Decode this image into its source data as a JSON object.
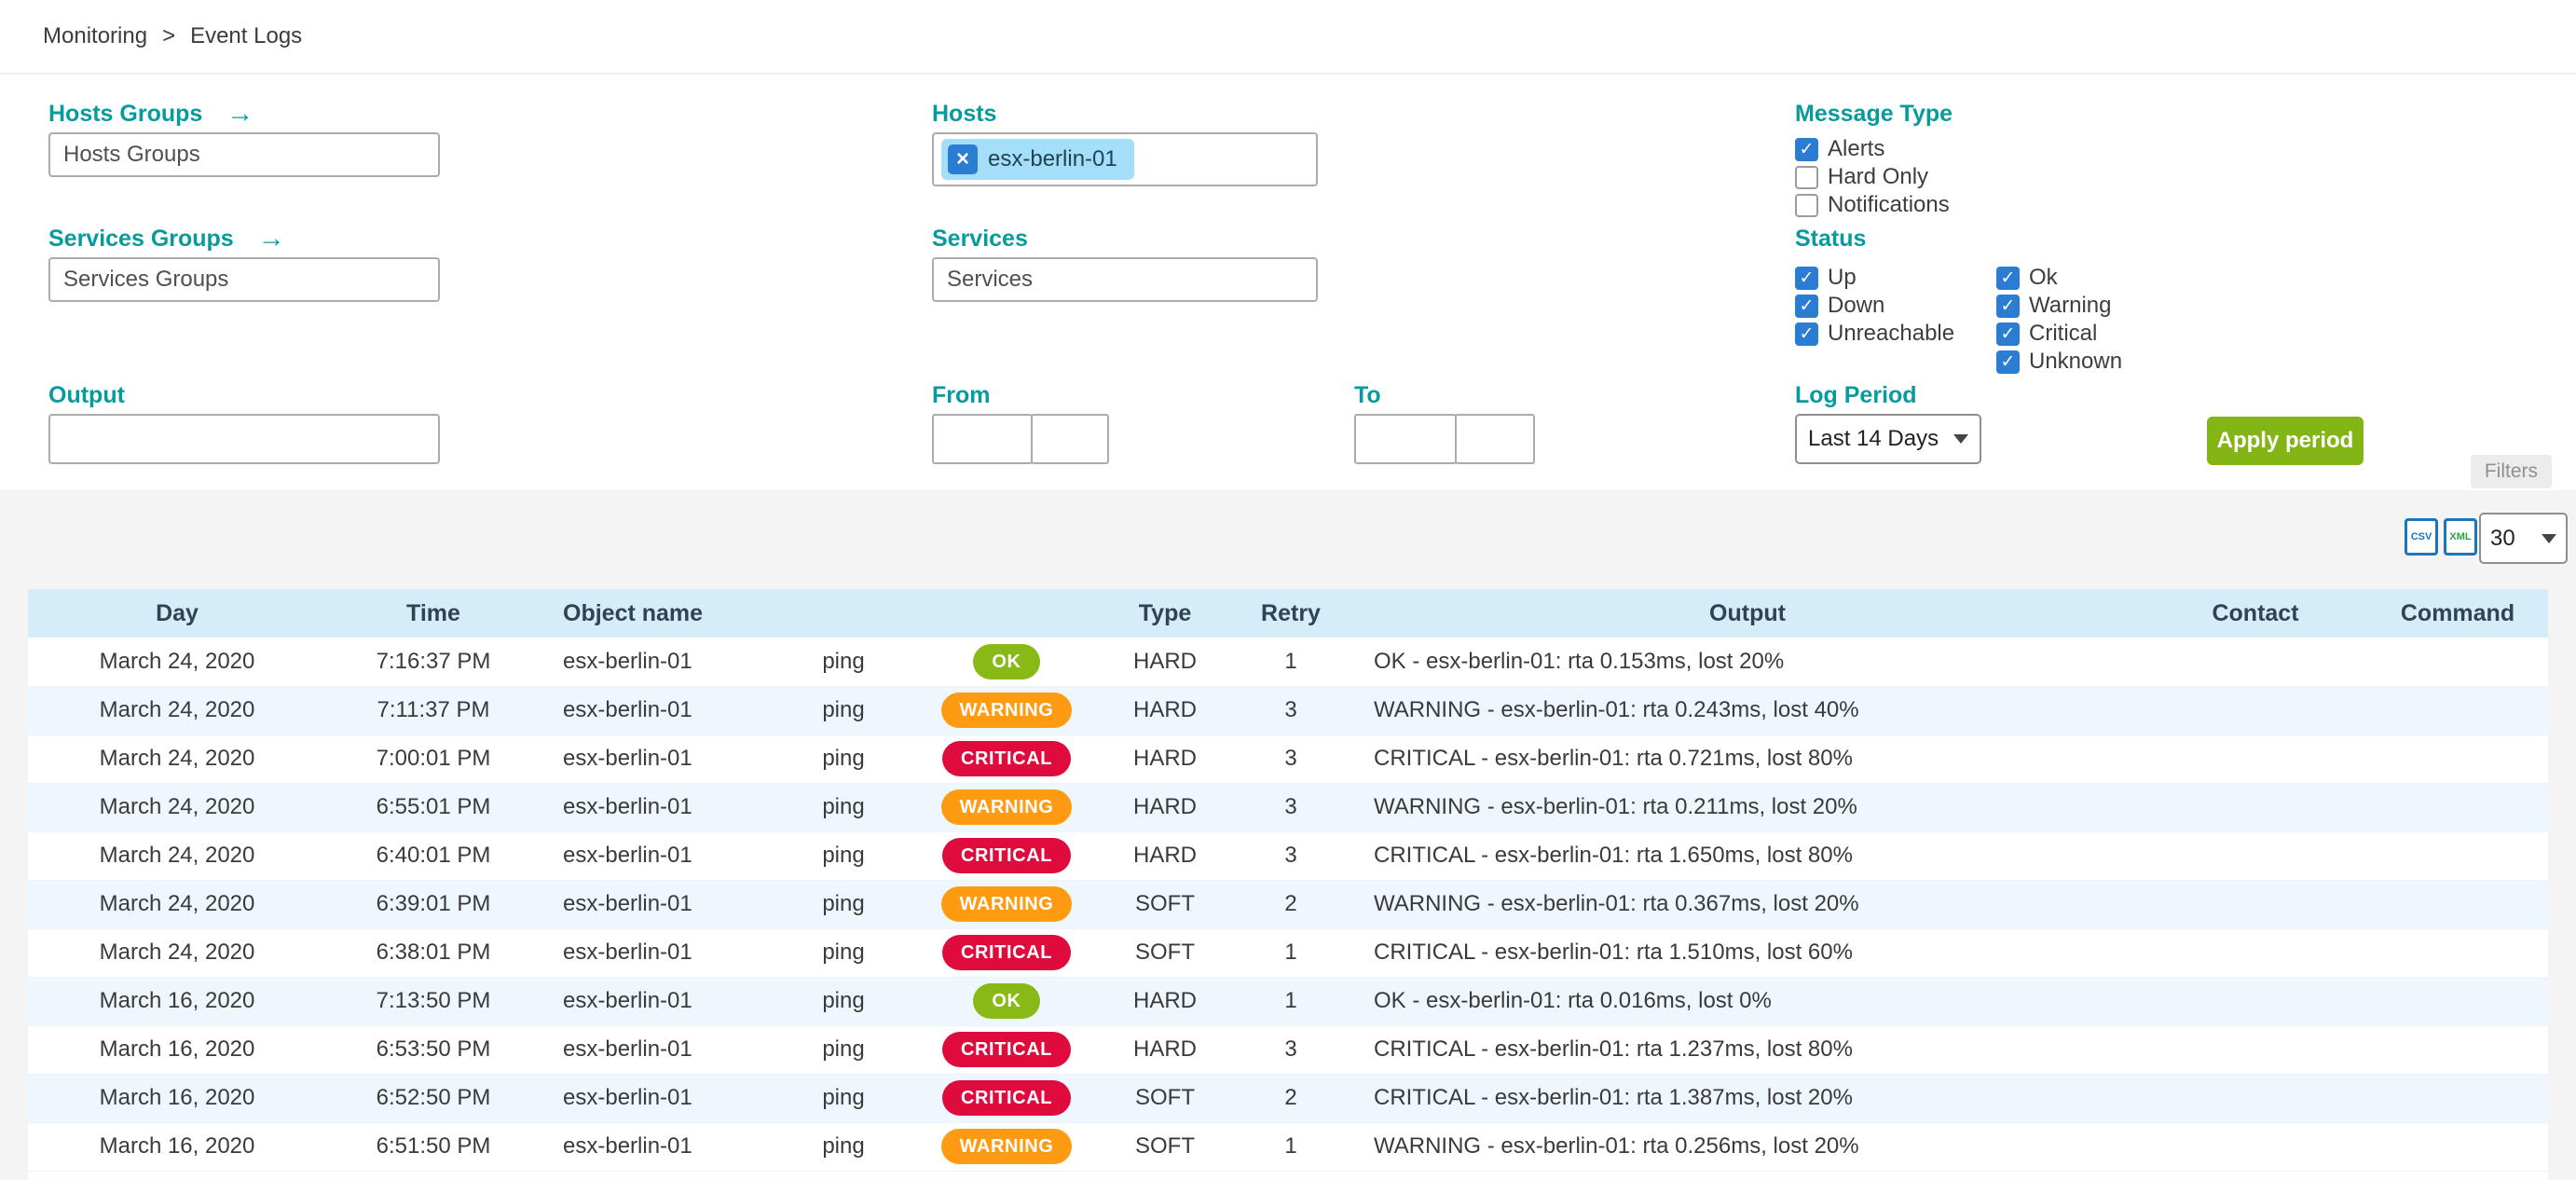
{
  "breadcrumb": {
    "monitoring": "Monitoring",
    "separator": ">",
    "current": "Event Logs"
  },
  "icons": {
    "arrow_right": "→",
    "close": "×",
    "check": "✓",
    "csv": "CSV",
    "xml": "XML"
  },
  "filters": {
    "tab_label": "Filters",
    "hosts_groups": {
      "label": "Hosts Groups",
      "placeholder": "Hosts Groups"
    },
    "services_groups": {
      "label": "Services Groups",
      "placeholder": "Services Groups"
    },
    "hosts": {
      "label": "Hosts",
      "selected_tags": [
        "esx-berlin-01"
      ]
    },
    "services": {
      "label": "Services",
      "placeholder": "Services"
    },
    "output": {
      "label": "Output",
      "value": ""
    },
    "from": {
      "label": "From",
      "date_value": "",
      "time_value": ""
    },
    "to": {
      "label": "To",
      "date_value": "",
      "time_value": ""
    },
    "message_type": {
      "label": "Message Type",
      "options": [
        {
          "label": "Alerts",
          "checked": true
        },
        {
          "label": "Hard Only",
          "checked": false
        },
        {
          "label": "Notifications",
          "checked": false
        }
      ]
    },
    "status": {
      "label": "Status",
      "column1": [
        {
          "label": "Up",
          "checked": true
        },
        {
          "label": "Down",
          "checked": true
        },
        {
          "label": "Unreachable",
          "checked": true
        }
      ],
      "column2": [
        {
          "label": "Ok",
          "checked": true
        },
        {
          "label": "Warning",
          "checked": true
        },
        {
          "label": "Critical",
          "checked": true
        },
        {
          "label": "Unknown",
          "checked": true
        }
      ]
    },
    "log_period": {
      "label": "Log Period",
      "selected": "Last 14 Days"
    },
    "apply_button_label": "Apply period"
  },
  "toolbar": {
    "page_size": "30"
  },
  "table": {
    "headers": [
      "Day",
      "Time",
      "Object name",
      "",
      "",
      "Type",
      "Retry",
      "Output",
      "Contact",
      "Command"
    ],
    "rows": [
      {
        "day": "March 24, 2020",
        "time": "7:16:37 PM",
        "object_name": "esx-berlin-01",
        "service": "ping",
        "status": "OK",
        "type": "HARD",
        "retry": "1",
        "output": "OK - esx-berlin-01: rta 0.153ms, lost 20%",
        "contact": "",
        "command": ""
      },
      {
        "day": "March 24, 2020",
        "time": "7:11:37 PM",
        "object_name": "esx-berlin-01",
        "service": "ping",
        "status": "WARNING",
        "type": "HARD",
        "retry": "3",
        "output": "WARNING - esx-berlin-01: rta 0.243ms, lost 40%",
        "contact": "",
        "command": ""
      },
      {
        "day": "March 24, 2020",
        "time": "7:00:01 PM",
        "object_name": "esx-berlin-01",
        "service": "ping",
        "status": "CRITICAL",
        "type": "HARD",
        "retry": "3",
        "output": "CRITICAL - esx-berlin-01: rta 0.721ms, lost 80%",
        "contact": "",
        "command": ""
      },
      {
        "day": "March 24, 2020",
        "time": "6:55:01 PM",
        "object_name": "esx-berlin-01",
        "service": "ping",
        "status": "WARNING",
        "type": "HARD",
        "retry": "3",
        "output": "WARNING - esx-berlin-01: rta 0.211ms, lost 20%",
        "contact": "",
        "command": ""
      },
      {
        "day": "March 24, 2020",
        "time": "6:40:01 PM",
        "object_name": "esx-berlin-01",
        "service": "ping",
        "status": "CRITICAL",
        "type": "HARD",
        "retry": "3",
        "output": "CRITICAL - esx-berlin-01: rta 1.650ms, lost 80%",
        "contact": "",
        "command": ""
      },
      {
        "day": "March 24, 2020",
        "time": "6:39:01 PM",
        "object_name": "esx-berlin-01",
        "service": "ping",
        "status": "WARNING",
        "type": "SOFT",
        "retry": "2",
        "output": "WARNING - esx-berlin-01: rta 0.367ms, lost 20%",
        "contact": "",
        "command": ""
      },
      {
        "day": "March 24, 2020",
        "time": "6:38:01 PM",
        "object_name": "esx-berlin-01",
        "service": "ping",
        "status": "CRITICAL",
        "type": "SOFT",
        "retry": "1",
        "output": "CRITICAL - esx-berlin-01: rta 1.510ms, lost 60%",
        "contact": "",
        "command": ""
      },
      {
        "day": "March 16, 2020",
        "time": "7:13:50 PM",
        "object_name": "esx-berlin-01",
        "service": "ping",
        "status": "OK",
        "type": "HARD",
        "retry": "1",
        "output": "OK - esx-berlin-01: rta 0.016ms, lost 0%",
        "contact": "",
        "command": ""
      },
      {
        "day": "March 16, 2020",
        "time": "6:53:50 PM",
        "object_name": "esx-berlin-01",
        "service": "ping",
        "status": "CRITICAL",
        "type": "HARD",
        "retry": "3",
        "output": "CRITICAL - esx-berlin-01: rta 1.237ms, lost 80%",
        "contact": "",
        "command": ""
      },
      {
        "day": "March 16, 2020",
        "time": "6:52:50 PM",
        "object_name": "esx-berlin-01",
        "service": "ping",
        "status": "CRITICAL",
        "type": "SOFT",
        "retry": "2",
        "output": "CRITICAL - esx-berlin-01: rta 1.387ms, lost 20%",
        "contact": "",
        "command": ""
      },
      {
        "day": "March 16, 2020",
        "time": "6:51:50 PM",
        "object_name": "esx-berlin-01",
        "service": "ping",
        "status": "WARNING",
        "type": "SOFT",
        "retry": "1",
        "output": "WARNING - esx-berlin-01: rta 0.256ms, lost 20%",
        "contact": "",
        "command": ""
      }
    ]
  },
  "colors": {
    "label_teal": "#089B9E",
    "checkbox_blue": "#2B7CD3",
    "button_green": "#84B517",
    "tag_chip_bg": "#A5DEF8",
    "table_header_bg": "#D4EDF9",
    "table_row_alt_bg": "#EEF7FD",
    "status_badge": {
      "OK": "#88B917",
      "WARNING": "#FF9A13",
      "CRITICAL": "#E00B3D"
    }
  }
}
